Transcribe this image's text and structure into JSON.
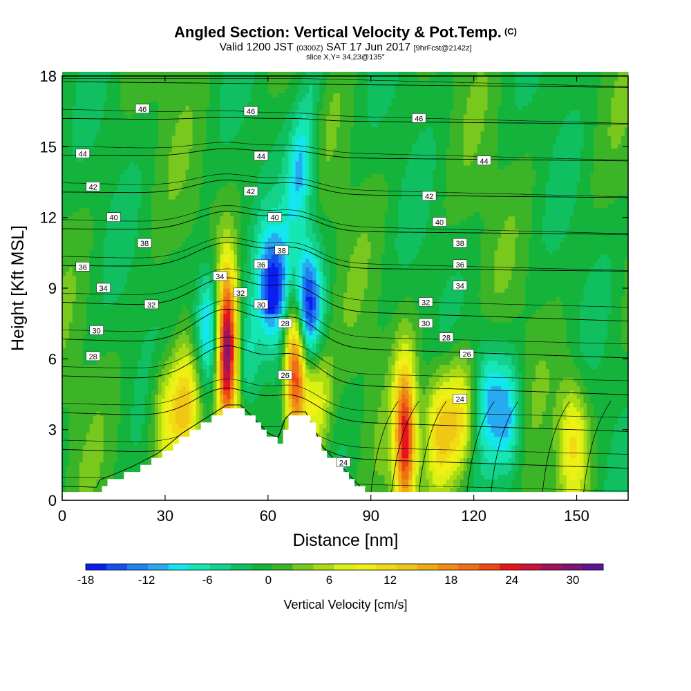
{
  "header": {
    "title": "Angled Section: Vertical Velocity & Pot.Temp.",
    "title_mark": "(C)",
    "valid_main": "Valid 1200 JST",
    "valid_small": "(0300Z)",
    "valid_date": "SAT 17 Jun 2017",
    "valid_fcst": "[9hrFcst@2142z]",
    "slice": "slice X,Y= 34,23@135°"
  },
  "chart_data": {
    "type": "heatmap",
    "xlabel": "Distance [nm]",
    "ylabel": "Height [Kft MSL]",
    "xlim": [
      0,
      165
    ],
    "ylim": [
      0,
      18
    ],
    "xticks": [
      "0",
      "30",
      "60",
      "90",
      "120",
      "150"
    ],
    "yticks": [
      "0",
      "3",
      "6",
      "9",
      "12",
      "15",
      "18"
    ],
    "grid": false,
    "colorbar": {
      "label": "Vertical Velocity [cm/s]",
      "placement": "bottom",
      "range": [
        -18,
        33
      ],
      "ticks": [
        "-18",
        "-12",
        "-6",
        "0",
        "6",
        "12",
        "18",
        "24",
        "30"
      ],
      "colors": [
        "#0a1ef0",
        "#1450f0",
        "#1e82f0",
        "#28aaf0",
        "#14e6f0",
        "#14e6b4",
        "#14d28c",
        "#10c060",
        "#14b43c",
        "#3cb428",
        "#78c81e",
        "#aadc14",
        "#dcf014",
        "#f0f014",
        "#f0dc14",
        "#f0c814",
        "#f0aa14",
        "#f08c14",
        "#f06e14",
        "#f04614",
        "#e6141e",
        "#c8143c",
        "#a0145a",
        "#7d1478",
        "#5a1496"
      ]
    },
    "contour_label": "Potential temperature (C)",
    "contour_levels": [
      "24",
      "26",
      "28",
      "30",
      "32",
      "34",
      "36",
      "38",
      "40",
      "42",
      "44",
      "46"
    ],
    "contour_label_positions": [
      {
        "text": "46",
        "x": 23.4,
        "y": 16.6
      },
      {
        "text": "46",
        "x": 55,
        "y": 16.5
      },
      {
        "text": "46",
        "x": 104,
        "y": 16.2
      },
      {
        "text": "44",
        "x": 6,
        "y": 14.7
      },
      {
        "text": "44",
        "x": 58,
        "y": 14.6
      },
      {
        "text": "44",
        "x": 123,
        "y": 14.4
      },
      {
        "text": "42",
        "x": 9,
        "y": 13.3
      },
      {
        "text": "42",
        "x": 55,
        "y": 13.1
      },
      {
        "text": "42",
        "x": 107,
        "y": 12.9
      },
      {
        "text": "40",
        "x": 15,
        "y": 12.0
      },
      {
        "text": "40",
        "x": 62,
        "y": 12.0
      },
      {
        "text": "40",
        "x": 110,
        "y": 11.8
      },
      {
        "text": "38",
        "x": 24,
        "y": 10.9
      },
      {
        "text": "38",
        "x": 64,
        "y": 10.6
      },
      {
        "text": "38",
        "x": 116,
        "y": 10.9
      },
      {
        "text": "36",
        "x": 6,
        "y": 9.9
      },
      {
        "text": "36",
        "x": 58,
        "y": 10.0
      },
      {
        "text": "36",
        "x": 116,
        "y": 10.0
      },
      {
        "text": "34",
        "x": 12,
        "y": 9.0
      },
      {
        "text": "34",
        "x": 46,
        "y": 9.5
      },
      {
        "text": "34",
        "x": 116,
        "y": 9.1
      },
      {
        "text": "32",
        "x": 26,
        "y": 8.3
      },
      {
        "text": "32",
        "x": 52,
        "y": 8.8
      },
      {
        "text": "32",
        "x": 106,
        "y": 8.4
      },
      {
        "text": "30",
        "x": 10,
        "y": 7.2
      },
      {
        "text": "30",
        "x": 58,
        "y": 8.3
      },
      {
        "text": "30",
        "x": 106,
        "y": 7.5
      },
      {
        "text": "28",
        "x": 9,
        "y": 6.1
      },
      {
        "text": "28",
        "x": 65,
        "y": 7.5
      },
      {
        "text": "28",
        "x": 112,
        "y": 6.9
      },
      {
        "text": "26",
        "x": 65,
        "y": 5.3
      },
      {
        "text": "26",
        "x": 118,
        "y": 6.2
      },
      {
        "text": "24",
        "x": 82,
        "y": 1.6
      },
      {
        "text": "24",
        "x": 116,
        "y": 4.3
      }
    ],
    "updraft_cores": [
      {
        "x": 48,
        "z": 6.5,
        "w": 33
      },
      {
        "x": 68,
        "z": 5.9,
        "w": 28
      },
      {
        "x": 36,
        "z": 3.8,
        "w": 13
      },
      {
        "x": 100,
        "z": 2.6,
        "w": 24
      },
      {
        "x": 110,
        "z": 3.0,
        "w": 13
      },
      {
        "x": 116,
        "z": 3.5,
        "w": 11
      },
      {
        "x": 149,
        "z": 2.6,
        "w": 11
      },
      {
        "x": 30,
        "z": 3.4,
        "w": 8
      },
      {
        "x": 74,
        "z": 4.4,
        "w": 10
      }
    ],
    "downdraft_cores": [
      {
        "x": 43,
        "z": 7.4,
        "w": -14
      },
      {
        "x": 61,
        "z": 9.0,
        "w": -14
      },
      {
        "x": 69,
        "z": 8.3,
        "w": -10
      },
      {
        "x": 72,
        "z": 8.1,
        "w": -12
      },
      {
        "x": 54,
        "z": 5.8,
        "w": -7
      },
      {
        "x": 130,
        "z": 3.5,
        "w": -10
      },
      {
        "x": 124,
        "z": 4.4,
        "w": -8
      },
      {
        "x": 70,
        "z": 13.8,
        "w": -7
      }
    ],
    "terrain_profile": [
      {
        "x": 10,
        "z": 0.65
      },
      {
        "x": 20,
        "z": 1.25
      },
      {
        "x": 28,
        "z": 1.85
      },
      {
        "x": 35,
        "z": 2.7
      },
      {
        "x": 42,
        "z": 3.35
      },
      {
        "x": 48,
        "z": 3.9
      },
      {
        "x": 52,
        "z": 3.9
      },
      {
        "x": 56,
        "z": 3.3
      },
      {
        "x": 60,
        "z": 2.7
      },
      {
        "x": 63,
        "z": 2.5
      },
      {
        "x": 65,
        "z": 3.3
      },
      {
        "x": 67,
        "z": 3.6
      },
      {
        "x": 71,
        "z": 3.6
      },
      {
        "x": 73,
        "z": 3.0
      },
      {
        "x": 76,
        "z": 2.1
      },
      {
        "x": 82,
        "z": 1.2
      },
      {
        "x": 86,
        "z": 0.55
      },
      {
        "x": 88,
        "z": 0.3
      }
    ]
  }
}
